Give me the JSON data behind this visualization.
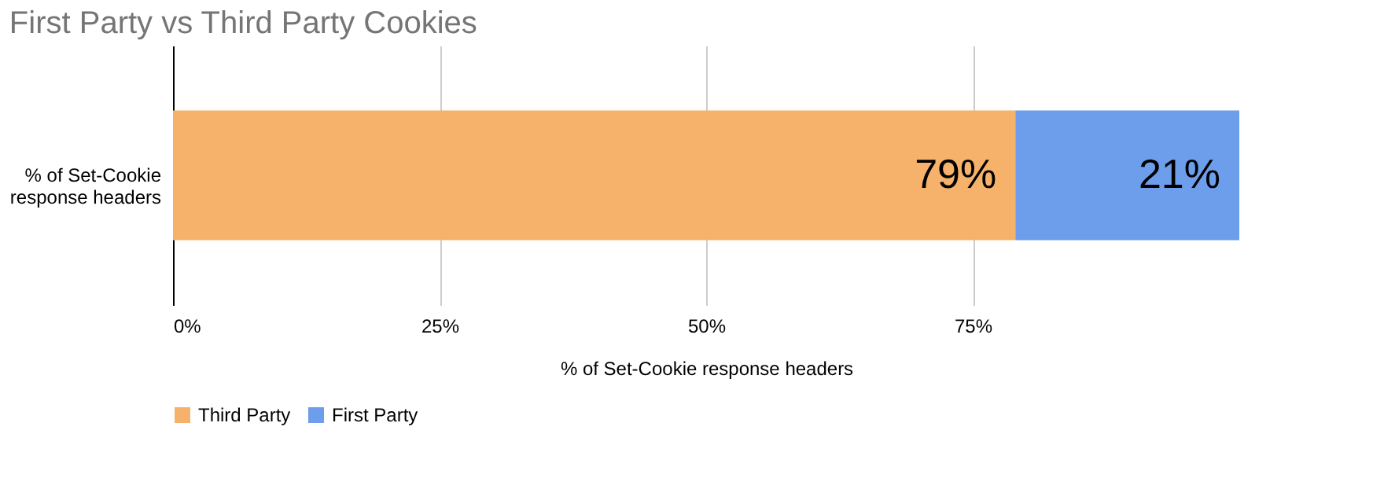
{
  "chart_data": {
    "type": "bar",
    "orientation": "horizontal",
    "stacked": true,
    "title": "First Party vs Third Party Cookies",
    "xlabel": "% of Set-Cookie response headers",
    "categories": [
      "% of Set-Cookie response headers"
    ],
    "series": [
      {
        "name": "Third Party",
        "color": "#f6b26b",
        "values": [
          79
        ],
        "value_labels": [
          "79%"
        ]
      },
      {
        "name": "First Party",
        "color": "#6d9eeb",
        "values": [
          21
        ],
        "value_labels": [
          "21%"
        ]
      }
    ],
    "xlim": [
      0,
      100
    ],
    "xticks": [
      {
        "value": 0,
        "label": "0%"
      },
      {
        "value": 25,
        "label": "25%"
      },
      {
        "value": 50,
        "label": "50%"
      },
      {
        "value": 75,
        "label": "75%"
      }
    ],
    "grid": "x",
    "legend": "bottom"
  }
}
